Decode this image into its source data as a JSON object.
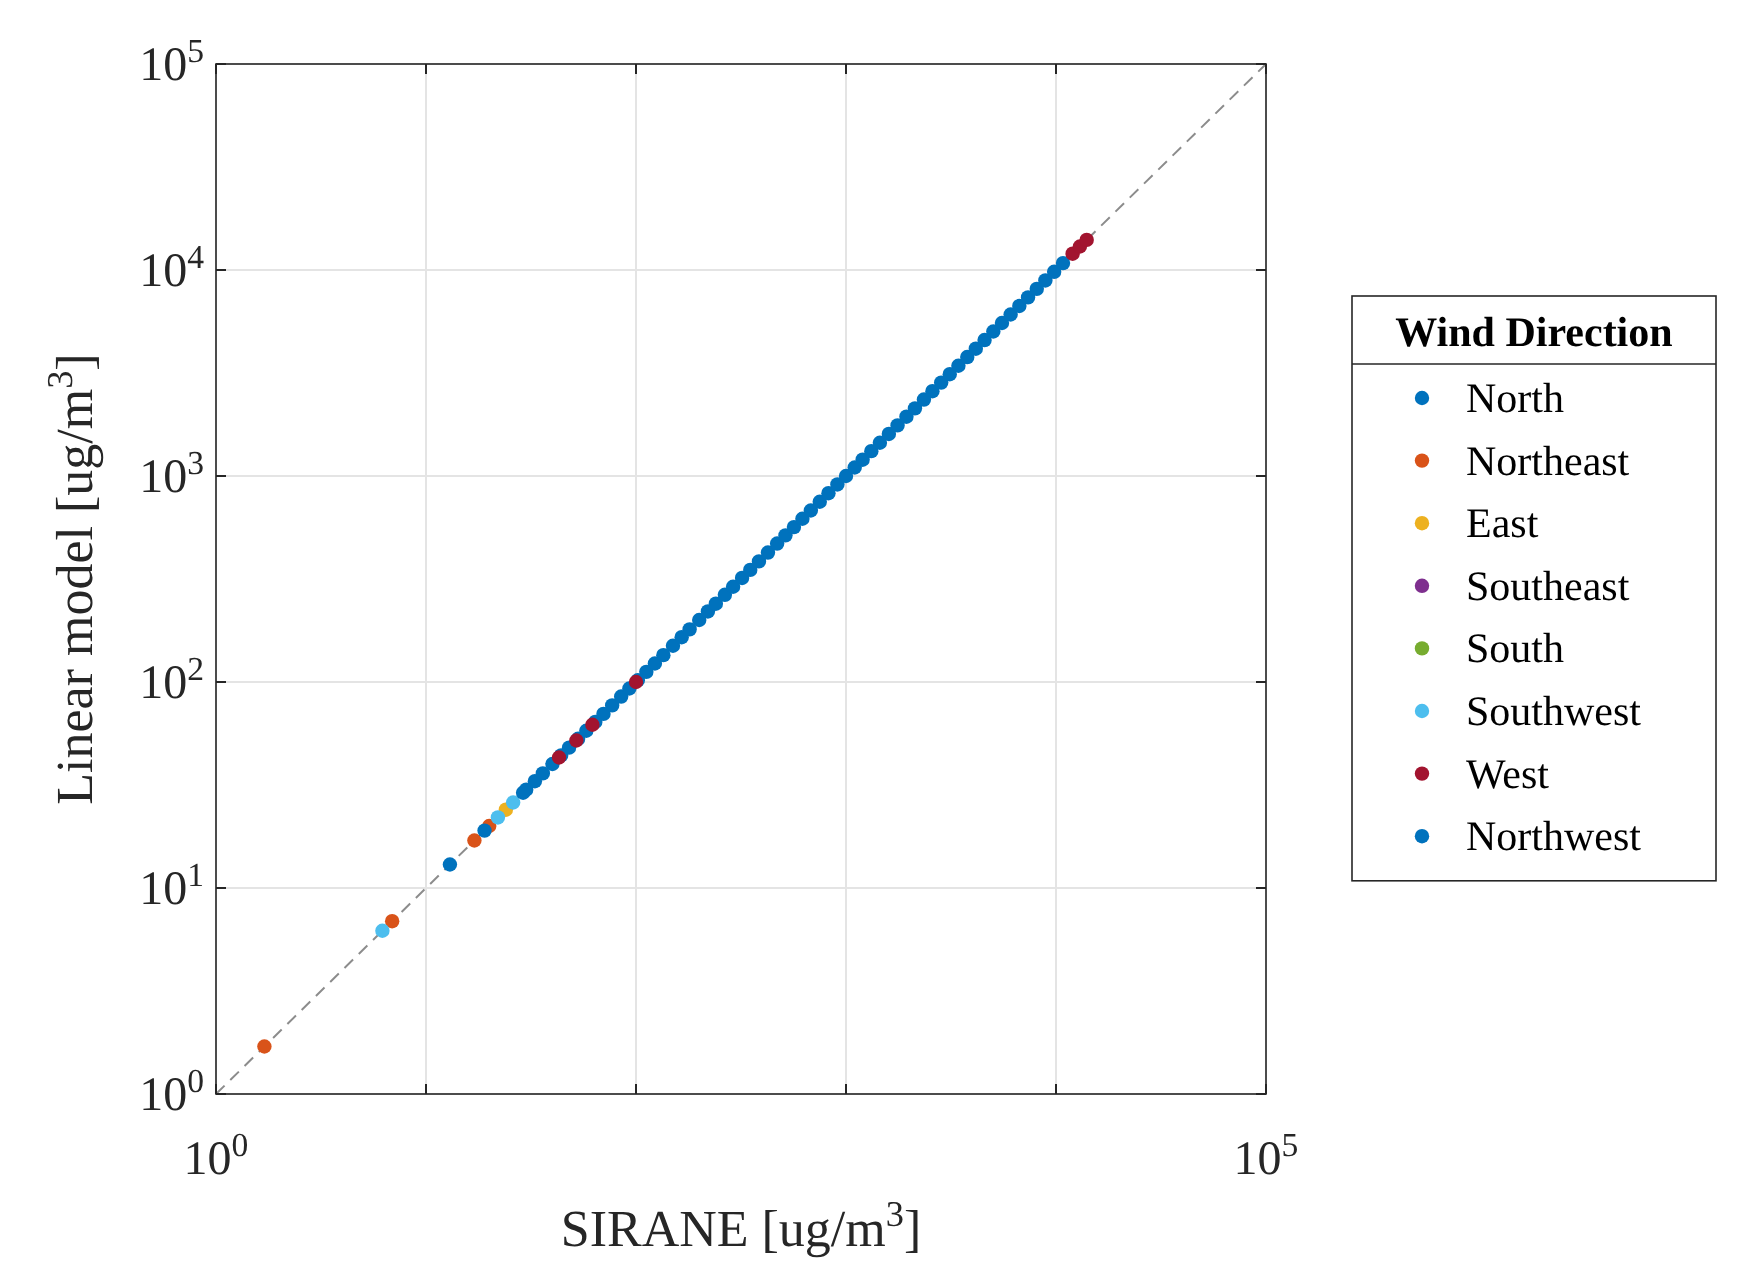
{
  "chart_data": {
    "type": "scatter",
    "xlabel": "SIRANE [ug/m$^{3}$]",
    "ylabel": "Linear model [ug/m$^{3}$]",
    "legend_title": "Wind Direction",
    "legend": "right",
    "grid": true,
    "log": "xy",
    "marker": "circle",
    "xlim": [
      1,
      100000
    ],
    "ylim": [
      1,
      100000
    ],
    "xticks": [
      {
        "value": 1,
        "label": "10$^{0}$"
      },
      {
        "value": 10,
        "label": null
      },
      {
        "value": 100,
        "label": null
      },
      {
        "value": 1000,
        "label": null
      },
      {
        "value": 10000,
        "label": null
      },
      {
        "value": 100000,
        "label": "10$^{5}$"
      }
    ],
    "yticks": [
      {
        "value": 1,
        "label": "10$^{0}$"
      },
      {
        "value": 10,
        "label": "10$^{1}$"
      },
      {
        "value": 100,
        "label": "10$^{2}$"
      },
      {
        "value": 1000,
        "label": "10$^{3}$"
      },
      {
        "value": 10000,
        "label": "10$^{4}$"
      },
      {
        "value": 100000,
        "label": "10$^{5}$"
      }
    ],
    "series": [
      {
        "type": "line",
        "color": "#8c8c8c",
        "line_style": "dashed",
        "marker": "none",
        "x": [
          1,
          100000
        ],
        "values": [
          1,
          100000
        ]
      },
      {
        "name": "North",
        "color": "#0072bd",
        "x": [
          30,
          33,
          36,
          40,
          44,
          48,
          53,
          58,
          64,
          70,
          77,
          85,
          93,
          102,
          112,
          123,
          135,
          150,
          165,
          180,
          200,
          220,
          240,
          265,
          290,
          320,
          350,
          385,
          425,
          470,
          515,
          565,
          620,
          680,
          750,
          825,
          910,
          1000,
          1100,
          1200,
          1320,
          1450,
          1600,
          1760,
          1940,
          2130,
          2350,
          2580,
          2840,
          3120,
          3430,
          3780,
          4150,
          4570,
          5030,
          5530,
          6080,
          6690,
          7360,
          8100,
          8900,
          9800,
          10800
        ],
        "values": [
          30,
          33,
          36,
          40,
          44,
          48,
          53,
          58,
          64,
          70,
          77,
          85,
          93,
          102,
          112,
          123,
          135,
          150,
          165,
          180,
          200,
          220,
          240,
          265,
          290,
          320,
          350,
          385,
          425,
          470,
          515,
          565,
          620,
          680,
          750,
          825,
          910,
          1000,
          1100,
          1200,
          1320,
          1450,
          1600,
          1760,
          1940,
          2130,
          2350,
          2580,
          2840,
          3120,
          3430,
          3780,
          4150,
          4570,
          5030,
          5530,
          6080,
          6690,
          7360,
          8100,
          8900,
          9800,
          10800
        ]
      },
      {
        "name": "Northeast",
        "color": "#d95319",
        "x": [
          1.7,
          6.9,
          17,
          20
        ],
        "values": [
          1.7,
          6.9,
          17,
          20
        ]
      },
      {
        "name": "East",
        "color": "#edb120",
        "x": [
          24
        ],
        "values": [
          24
        ]
      },
      {
        "name": "Southeast",
        "color": "#7e2f8e"
      },
      {
        "name": "South",
        "color": "#77ac30"
      },
      {
        "name": "Southwest",
        "color": "#4dbeee",
        "x": [
          6.2,
          22,
          26
        ],
        "values": [
          6.2,
          22,
          26
        ]
      },
      {
        "name": "West",
        "color": "#a2142f",
        "x": [
          43,
          52,
          62,
          100,
          12000,
          13000,
          14000
        ],
        "values": [
          43,
          52,
          62,
          100,
          12000,
          13000,
          14000
        ]
      },
      {
        "name": "Northwest",
        "color": "#0072bd",
        "x": [
          13,
          19,
          29
        ],
        "values": [
          13,
          19,
          29
        ]
      }
    ]
  }
}
